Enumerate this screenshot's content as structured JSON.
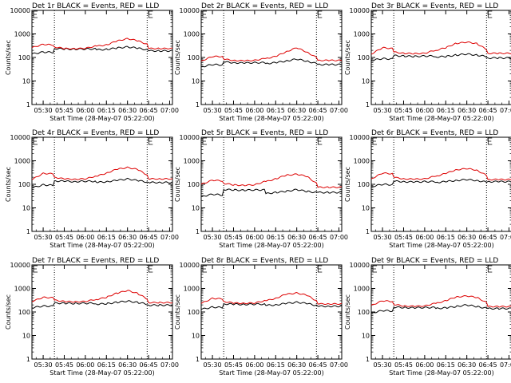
{
  "x_ticks": [
    "05:30",
    "05:45",
    "06:00",
    "06:15",
    "06:30",
    "06:45",
    "07:00"
  ],
  "y_ticks": [
    "1",
    "10",
    "100",
    "1000",
    "10000"
  ],
  "xlabel": "Start Time (28-May-07 05:22:00)",
  "ylabel": "Counts/sec",
  "colors": {
    "events": "#000000",
    "lld": "#dd0000"
  },
  "chart_data": [
    {
      "type": "line",
      "title": "Det 1r BLACK = Events, RED = LLD",
      "xlabel": "Start Time (28-May-07 05:22:00)",
      "ylabel": "Counts/sec",
      "y_scale": "log",
      "ylim": [
        1,
        10000
      ],
      "xlim": [
        "05:22",
        "07:02"
      ],
      "x": [
        "05:22",
        "05:30",
        "05:37",
        "05:38",
        "05:45",
        "05:52",
        "06:00",
        "06:07",
        "06:08",
        "06:15",
        "06:22",
        "06:30",
        "06:37",
        "06:44",
        "06:45",
        "06:52",
        "07:02"
      ],
      "series": [
        {
          "name": "Events",
          "values": [
            140,
            170,
            165,
            240,
            230,
            225,
            230,
            230,
            210,
            220,
            250,
            280,
            250,
            210,
            190,
            190,
            190
          ]
        },
        {
          "name": "LLD",
          "values": [
            260,
            360,
            340,
            280,
            240,
            235,
            245,
            300,
            300,
            340,
            490,
            630,
            520,
            360,
            240,
            240,
            240
          ]
        }
      ]
    },
    {
      "type": "line",
      "title": "Det 2r BLACK = Events, RED = LLD",
      "xlabel": "Start Time (28-May-07 05:22:00)",
      "ylabel": "Counts/sec",
      "y_scale": "log",
      "ylim": [
        1,
        10000
      ],
      "xlim": [
        "05:22",
        "07:02"
      ],
      "x": [
        "05:22",
        "05:30",
        "05:37",
        "05:38",
        "05:45",
        "05:52",
        "06:00",
        "06:07",
        "06:08",
        "06:15",
        "06:22",
        "06:30",
        "06:37",
        "06:44",
        "06:45",
        "06:52",
        "07:02"
      ],
      "series": [
        {
          "name": "Events",
          "values": [
            40,
            50,
            48,
            65,
            60,
            58,
            60,
            60,
            55,
            60,
            70,
            85,
            70,
            55,
            50,
            50,
            50
          ]
        },
        {
          "name": "LLD",
          "values": [
            70,
            110,
            110,
            85,
            75,
            72,
            75,
            90,
            90,
            110,
            170,
            260,
            170,
            100,
            75,
            75,
            75
          ]
        }
      ]
    },
    {
      "type": "line",
      "title": "Det 3r BLACK = Events, RED = LLD",
      "xlabel": "Start Time (28-May-07 05:22:00)",
      "ylabel": "Counts/sec",
      "y_scale": "log",
      "ylim": [
        1,
        10000
      ],
      "xlim": [
        "05:22",
        "07:02"
      ],
      "x": [
        "05:22",
        "05:30",
        "05:37",
        "05:38",
        "05:45",
        "05:52",
        "06:00",
        "06:07",
        "06:08",
        "06:15",
        "06:22",
        "06:30",
        "06:37",
        "06:44",
        "06:45",
        "06:52",
        "07:02"
      ],
      "series": [
        {
          "name": "Events",
          "values": [
            75,
            90,
            85,
            120,
            115,
            110,
            115,
            115,
            105,
            110,
            125,
            140,
            125,
            110,
            95,
            95,
            95
          ]
        },
        {
          "name": "LLD",
          "values": [
            140,
            260,
            240,
            170,
            150,
            145,
            150,
            200,
            200,
            260,
            390,
            450,
            390,
            220,
            150,
            150,
            150
          ]
        }
      ]
    },
    {
      "type": "line",
      "title": "Det 4r BLACK = Events, RED = LLD",
      "xlabel": "Start Time (28-May-07 05:22:00)",
      "ylabel": "Counts/sec",
      "y_scale": "log",
      "ylim": [
        1,
        10000
      ],
      "xlim": [
        "05:22",
        "07:02"
      ],
      "x": [
        "05:22",
        "05:30",
        "05:37",
        "05:38",
        "05:45",
        "05:52",
        "06:00",
        "06:07",
        "06:08",
        "06:15",
        "06:22",
        "06:30",
        "06:37",
        "06:44",
        "06:45",
        "06:52",
        "07:02"
      ],
      "series": [
        {
          "name": "Events",
          "values": [
            70,
            95,
            90,
            140,
            135,
            130,
            135,
            135,
            120,
            130,
            145,
            170,
            145,
            125,
            120,
            120,
            120
          ]
        },
        {
          "name": "LLD",
          "values": [
            160,
            290,
            280,
            200,
            170,
            165,
            170,
            220,
            220,
            300,
            430,
            520,
            430,
            250,
            170,
            170,
            170
          ]
        }
      ]
    },
    {
      "type": "line",
      "title": "Det 5r BLACK = Events, RED = LLD",
      "xlabel": "Start Time (28-May-07 05:22:00)",
      "ylabel": "Counts/sec",
      "y_scale": "log",
      "ylim": [
        1,
        10000
      ],
      "xlim": [
        "05:22",
        "07:02"
      ],
      "x": [
        "05:22",
        "05:30",
        "05:37",
        "05:38",
        "05:45",
        "05:52",
        "06:00",
        "06:07",
        "06:08",
        "06:15",
        "06:22",
        "06:30",
        "06:37",
        "06:44",
        "06:45",
        "06:52",
        "07:02"
      ],
      "series": [
        {
          "name": "Events",
          "values": [
            30,
            38,
            35,
            60,
            58,
            56,
            58,
            58,
            40,
            45,
            50,
            60,
            50,
            45,
            45,
            45,
            45
          ]
        },
        {
          "name": "LLD",
          "values": [
            100,
            150,
            140,
            110,
            95,
            90,
            95,
            130,
            130,
            170,
            240,
            270,
            220,
            110,
            75,
            75,
            75
          ]
        }
      ]
    },
    {
      "type": "line",
      "title": "Det 6r BLACK = Events, RED = LLD",
      "xlabel": "Start Time (28-May-07 05:22:00)",
      "ylabel": "Counts/sec",
      "y_scale": "log",
      "ylim": [
        1,
        10000
      ],
      "xlim": [
        "05:22",
        "07:02"
      ],
      "x": [
        "05:22",
        "05:30",
        "05:37",
        "05:38",
        "05:45",
        "05:52",
        "06:00",
        "06:07",
        "06:08",
        "06:15",
        "06:22",
        "06:30",
        "06:37",
        "06:44",
        "06:45",
        "06:52",
        "07:02"
      ],
      "series": [
        {
          "name": "Events",
          "values": [
            80,
            100,
            95,
            135,
            130,
            125,
            130,
            130,
            120,
            130,
            145,
            160,
            145,
            125,
            130,
            130,
            130
          ]
        },
        {
          "name": "LLD",
          "values": [
            170,
            300,
            280,
            200,
            170,
            165,
            170,
            220,
            220,
            290,
            410,
            470,
            400,
            240,
            160,
            160,
            160
          ]
        }
      ]
    },
    {
      "type": "line",
      "title": "Det 7r BLACK = Events, RED = LLD",
      "xlabel": "Start Time (28-May-07 05:22:00)",
      "ylabel": "Counts/sec",
      "y_scale": "log",
      "ylim": [
        1,
        10000
      ],
      "xlim": [
        "05:22",
        "07:02"
      ],
      "x": [
        "05:22",
        "05:30",
        "05:37",
        "05:38",
        "05:45",
        "05:52",
        "06:00",
        "06:07",
        "06:08",
        "06:15",
        "06:22",
        "06:30",
        "06:37",
        "06:44",
        "06:45",
        "06:52",
        "07:02"
      ],
      "series": [
        {
          "name": "Events",
          "values": [
            150,
            180,
            175,
            240,
            235,
            230,
            235,
            235,
            215,
            225,
            255,
            290,
            255,
            215,
            195,
            195,
            195
          ]
        },
        {
          "name": "LLD",
          "values": [
            280,
            420,
            400,
            320,
            280,
            270,
            280,
            340,
            340,
            420,
            620,
            820,
            620,
            360,
            250,
            250,
            250
          ]
        }
      ]
    },
    {
      "type": "line",
      "title": "Det 8r BLACK = Events, RED = LLD",
      "xlabel": "Start Time (28-May-07 05:22:00)",
      "ylabel": "Counts/sec",
      "y_scale": "log",
      "ylim": [
        1,
        10000
      ],
      "xlim": [
        "05:22",
        "07:02"
      ],
      "x": [
        "05:22",
        "05:30",
        "05:37",
        "05:38",
        "05:45",
        "05:52",
        "06:00",
        "06:07",
        "06:08",
        "06:15",
        "06:22",
        "06:30",
        "06:37",
        "06:44",
        "06:45",
        "06:52",
        "07:02"
      ],
      "series": [
        {
          "name": "Events",
          "values": [
            130,
            160,
            155,
            220,
            215,
            210,
            215,
            215,
            190,
            200,
            230,
            260,
            230,
            190,
            175,
            175,
            175
          ]
        },
        {
          "name": "LLD",
          "values": [
            230,
            380,
            360,
            280,
            240,
            235,
            240,
            300,
            300,
            380,
            560,
            640,
            520,
            300,
            220,
            220,
            220
          ]
        }
      ]
    },
    {
      "type": "line",
      "title": "Det 9r BLACK = Events, RED = LLD",
      "xlabel": "Start Time (28-May-07 05:22:00)",
      "ylabel": "Counts/sec",
      "y_scale": "log",
      "ylim": [
        1,
        10000
      ],
      "xlim": [
        "05:22",
        "07:02"
      ],
      "x": [
        "05:22",
        "05:30",
        "05:37",
        "05:38",
        "05:45",
        "05:52",
        "06:00",
        "06:07",
        "06:08",
        "06:15",
        "06:22",
        "06:30",
        "06:37",
        "06:44",
        "06:45",
        "06:52",
        "07:02"
      ],
      "series": [
        {
          "name": "Events",
          "values": [
            90,
            115,
            110,
            160,
            155,
            150,
            155,
            155,
            140,
            150,
            170,
            200,
            170,
            145,
            140,
            140,
            140
          ]
        },
        {
          "name": "LLD",
          "values": [
            190,
            300,
            280,
            210,
            180,
            175,
            180,
            230,
            230,
            300,
            430,
            480,
            420,
            250,
            170,
            170,
            170
          ]
        }
      ]
    }
  ]
}
